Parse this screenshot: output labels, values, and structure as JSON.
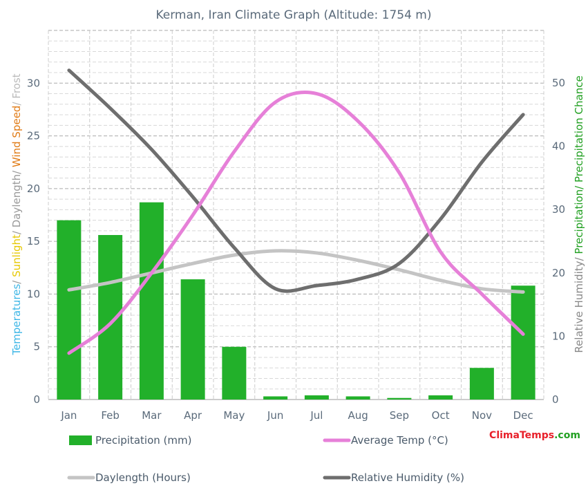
{
  "chart_data": {
    "type": "bar",
    "title": "Kerman, Iran Climate Graph (Altitude: 1754 m)",
    "categories": [
      "Jan",
      "Feb",
      "Mar",
      "Apr",
      "May",
      "Jun",
      "Jul",
      "Aug",
      "Sep",
      "Oct",
      "Nov",
      "Dec"
    ],
    "left_axis": {
      "ylim": [
        0,
        35
      ],
      "ticks": [
        "0",
        "5",
        "10",
        "15",
        "20",
        "25",
        "30"
      ],
      "title_parts": [
        {
          "text": "Temperatures",
          "color": "#3cb6e6"
        },
        {
          "text": "/ ",
          "color": "#999999"
        },
        {
          "text": "Sunlight",
          "color": "#e6c800"
        },
        {
          "text": "/ Daylength/ ",
          "color": "#999999"
        },
        {
          "text": "Wind Speed",
          "color": "#e07a14"
        },
        {
          "text": "/ Frost",
          "color": "#bbbbbb"
        }
      ]
    },
    "right_axis": {
      "ylim": [
        0,
        58.3
      ],
      "ticks": [
        "0",
        "10",
        "20",
        "30",
        "40",
        "50"
      ],
      "title_parts": [
        {
          "text": "Relative Humidity/ ",
          "color": "#888888"
        },
        {
          "text": "Precipitation/ Precipitation Chance",
          "color": "#22a022"
        }
      ]
    },
    "series": [
      {
        "name": "Precipitation (mm)",
        "type": "bar",
        "axis": "left",
        "color": "#22b02a",
        "values": [
          17.0,
          15.6,
          18.7,
          11.4,
          5.0,
          0.3,
          0.4,
          0.3,
          0.15,
          0.4,
          3.0,
          10.8
        ]
      },
      {
        "name": "Average Temp (°C)",
        "type": "line",
        "axis": "left",
        "color": "#e680d8",
        "values": [
          4.4,
          7.2,
          12.0,
          17.5,
          23.5,
          28.2,
          29.0,
          26.4,
          21.5,
          14.0,
          10.0,
          6.2
        ]
      },
      {
        "name": "Daylength (Hours)",
        "type": "line",
        "axis": "left",
        "color": "#c4c4c4",
        "values": [
          10.4,
          11.1,
          12.0,
          12.9,
          13.7,
          14.1,
          13.9,
          13.2,
          12.3,
          11.3,
          10.5,
          10.2
        ]
      },
      {
        "name": "Relative Humidity (%)",
        "type": "line",
        "axis": "right",
        "color": "#6e6e6e",
        "values": [
          52.0,
          46.0,
          39.5,
          32.0,
          24.0,
          17.5,
          18.0,
          19.0,
          21.5,
          28.5,
          37.5,
          45.0
        ]
      }
    ],
    "grid": true,
    "legend": "bottom"
  },
  "brand": {
    "part1": "Clima",
    "part2": "Temps",
    "part3": ".com",
    "color1": "#e8202a",
    "color2": "#e8202a",
    "color3": "#22a022"
  }
}
